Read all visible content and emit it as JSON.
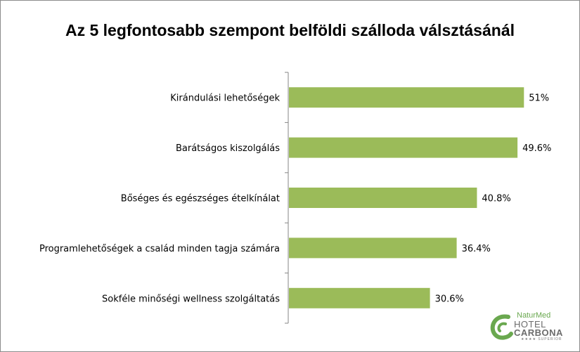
{
  "chart_data": {
    "type": "bar",
    "orientation": "horizontal",
    "title": "Az 5 legfontosabb szempont belföldi szálloda válsztásánál",
    "categories": [
      "Kirándulási lehetőségek",
      "Barátságos kiszolgálás",
      "Bőséges és egészséges ételkínálat",
      "Programlehetőségek a család minden tagja számára",
      "Sokféle minőségi wellness szolgáltatás"
    ],
    "values": [
      51,
      49.6,
      40.8,
      36.4,
      30.6
    ],
    "value_labels": [
      "51%",
      "49.6%",
      "40.8%",
      "36.4%",
      "30.6%"
    ],
    "unit": "%",
    "xlim": [
      0,
      60
    ],
    "grid": false,
    "bar_color": "#9bbb59"
  },
  "logo": {
    "line1": "NaturMed",
    "line2": "HOTEL",
    "line3": "CARBONA",
    "line4": "★★★★ SUPERIOR",
    "color_green": "#6aa84f",
    "color_gray": "#6c6c6c"
  }
}
